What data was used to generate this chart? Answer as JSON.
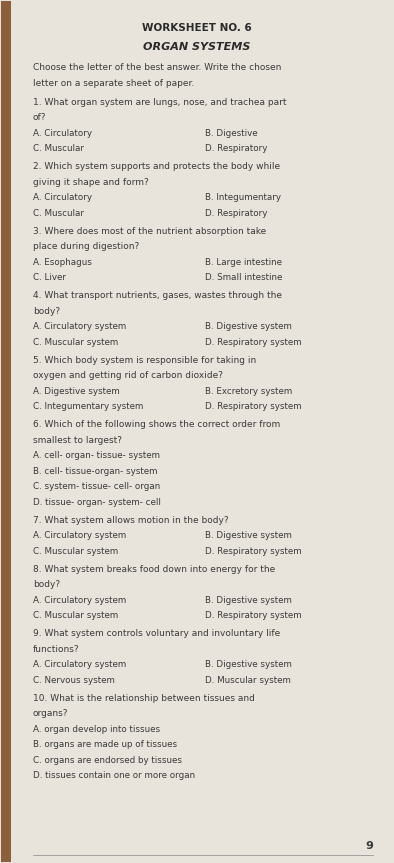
{
  "title": "WORKSHEET NO. 6",
  "subtitle": "ORGAN SYSTEMS",
  "instructions": "Choose the letter of the best answer. Write the chosen\nletter on a separate sheet of paper.",
  "questions": [
    {
      "number": "1.",
      "text": "What organ system are lungs, nose, and trachea part\nof?",
      "options": [
        [
          "A. Circulatory",
          "B. Digestive"
        ],
        [
          "C. Muscular",
          "D. Respiratory"
        ]
      ]
    },
    {
      "number": "2.",
      "text": "Which system supports and protects the body while\ngiving it shape and form?",
      "options": [
        [
          "A. Circulatory",
          "B. Integumentary"
        ],
        [
          "C. Muscular",
          "D. Respiratory"
        ]
      ]
    },
    {
      "number": "3.",
      "text": "Where does most of the nutrient absorption take\nplace during digestion?",
      "options": [
        [
          "A. Esophagus",
          "B. Large intestine"
        ],
        [
          "C. Liver",
          "D. Small intestine"
        ]
      ]
    },
    {
      "number": "4.",
      "text": "What transport nutrients, gases, wastes through the\nbody?",
      "options": [
        [
          "A. Circulatory system",
          "B. Digestive system"
        ],
        [
          "C. Muscular system",
          "D. Respiratory system"
        ]
      ]
    },
    {
      "number": "5.",
      "text": "Which body system is responsible for taking in\noxygen and getting rid of carbon dioxide?",
      "options": [
        [
          "A. Digestive system",
          "B. Excretory system"
        ],
        [
          "C. Integumentary system",
          "D. Respiratory system"
        ]
      ]
    },
    {
      "number": "6.",
      "text": "Which of the following shows the correct order from\nsmallest to largest?",
      "options_single": [
        "A. cell- organ- tissue- system",
        "B. cell- tissue-organ- system",
        "C. system- tissue- cell- organ",
        "D. tissue- organ- system- cell"
      ]
    },
    {
      "number": "7.",
      "text": "What system allows motion in the body?",
      "options": [
        [
          "A. Circulatory system",
          "B. Digestive system"
        ],
        [
          "C. Muscular system",
          "D. Respiratory system"
        ]
      ]
    },
    {
      "number": "8.",
      "text": "What system breaks food down into energy for the\nbody?",
      "options": [
        [
          "A. Circulatory system",
          "B. Digestive system"
        ],
        [
          "C. Muscular system",
          "D. Respiratory system"
        ]
      ]
    },
    {
      "number": "9.",
      "text": "What system controls voluntary and involuntary life\nfunctions?",
      "options": [
        [
          "A. Circulatory system",
          "B. Digestive system"
        ],
        [
          "C. Nervous system",
          "D. Muscular system"
        ]
      ]
    },
    {
      "number": "10.",
      "text": "What is the relationship between tissues and\norgans?",
      "options_single": [
        "A. organ develop into tissues",
        "B. organs are made up of tissues",
        "C. organs are endorsed by tissues",
        "D. tissues contain one or more organ"
      ]
    }
  ],
  "page_number": "9",
  "bg_color": "#e8e4dc",
  "text_color": "#3a3a3a",
  "title_color": "#2a2a2a"
}
